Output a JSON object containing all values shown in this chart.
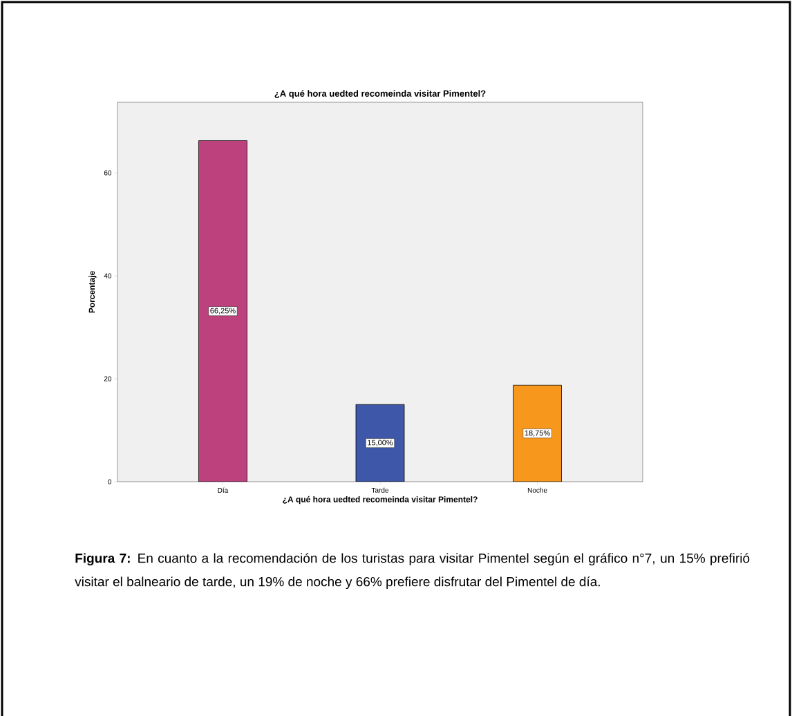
{
  "chart_data": {
    "type": "bar",
    "title": "¿A qué hora uedted recomeinda visitar Pimentel?",
    "xlabel": "¿A qué hora uedted recomeinda visitar Pimentel?",
    "ylabel": "Porcentaje",
    "categories": [
      "Día",
      "Tarde",
      "Noche"
    ],
    "values": [
      66.25,
      15.0,
      18.75
    ],
    "colors": [
      "#bc417c",
      "#3f57a8",
      "#f7981d"
    ],
    "value_labels": [
      "66,25%",
      "15,00%",
      "18,75%"
    ],
    "ylim": [
      0,
      73.7
    ],
    "yticks": [
      0,
      20,
      40,
      60
    ],
    "annotations": [
      "**Figura 7:** En cuanto a la recomendación de los turistas para visitar Pimentel según el gráfico n°7, un 15% prefirió visitar el balneario de tarde, un 19% de noche y 66% prefiere disfrutar del Pimentel de día."
    ]
  }
}
